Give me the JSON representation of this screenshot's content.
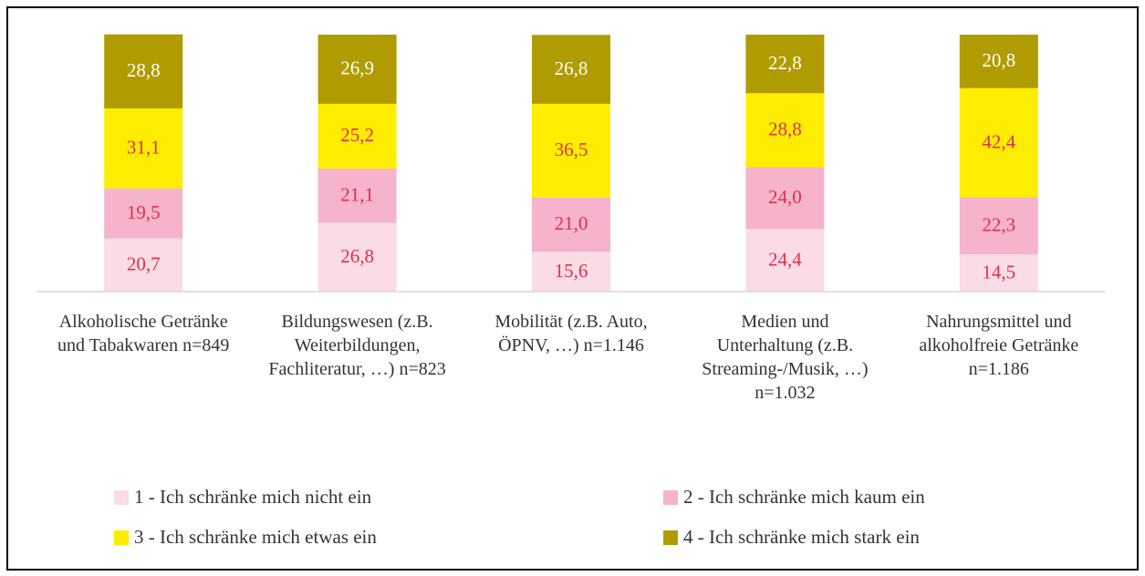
{
  "chart_data": {
    "type": "stacked_bar",
    "categories": [
      "Alkoholische Getränke und Tabakwaren n=849",
      "Bildungswesen (z.B. Weiterbildungen, Fachliteratur, …) n=823",
      "Mobilität (z.B. Auto, ÖPNV, …) n=1.146",
      "Medien und Unterhaltung (z.B. Streaming-/Musik, …) n=1.032",
      "Nahrungsmittel und alkoholfreie Getränke n=1.186"
    ],
    "series": [
      {
        "name": "1 - Ich schränke mich nicht ein",
        "color": "#fadbe6",
        "values": [
          20.7,
          26.8,
          15.6,
          24.4,
          14.5
        ],
        "value_labels": [
          "20,7",
          "26,8",
          "15,6",
          "24,4",
          "14,5"
        ]
      },
      {
        "name": "2 - Ich schränke mich kaum ein",
        "color": "#f5b3cc",
        "values": [
          19.5,
          21.1,
          21.0,
          24.0,
          22.3
        ],
        "value_labels": [
          "19,5",
          "21,1",
          "21,0",
          "24,0",
          "22,3"
        ]
      },
      {
        "name": "3 - Ich schränke mich etwas ein",
        "color": "#ffed00",
        "values": [
          31.1,
          25.2,
          36.5,
          28.8,
          42.4
        ],
        "value_labels": [
          "31,1",
          "25,2",
          "36,5",
          "28,8",
          "42,4"
        ]
      },
      {
        "name": "4 - Ich schränke mich stark ein",
        "color": "#b09b00",
        "values": [
          28.8,
          26.9,
          26.8,
          22.8,
          20.8
        ],
        "value_labels": [
          "28,8",
          "26,9",
          "26,8",
          "22,8",
          "20,8"
        ]
      }
    ],
    "ylim": [
      0,
      100
    ]
  }
}
